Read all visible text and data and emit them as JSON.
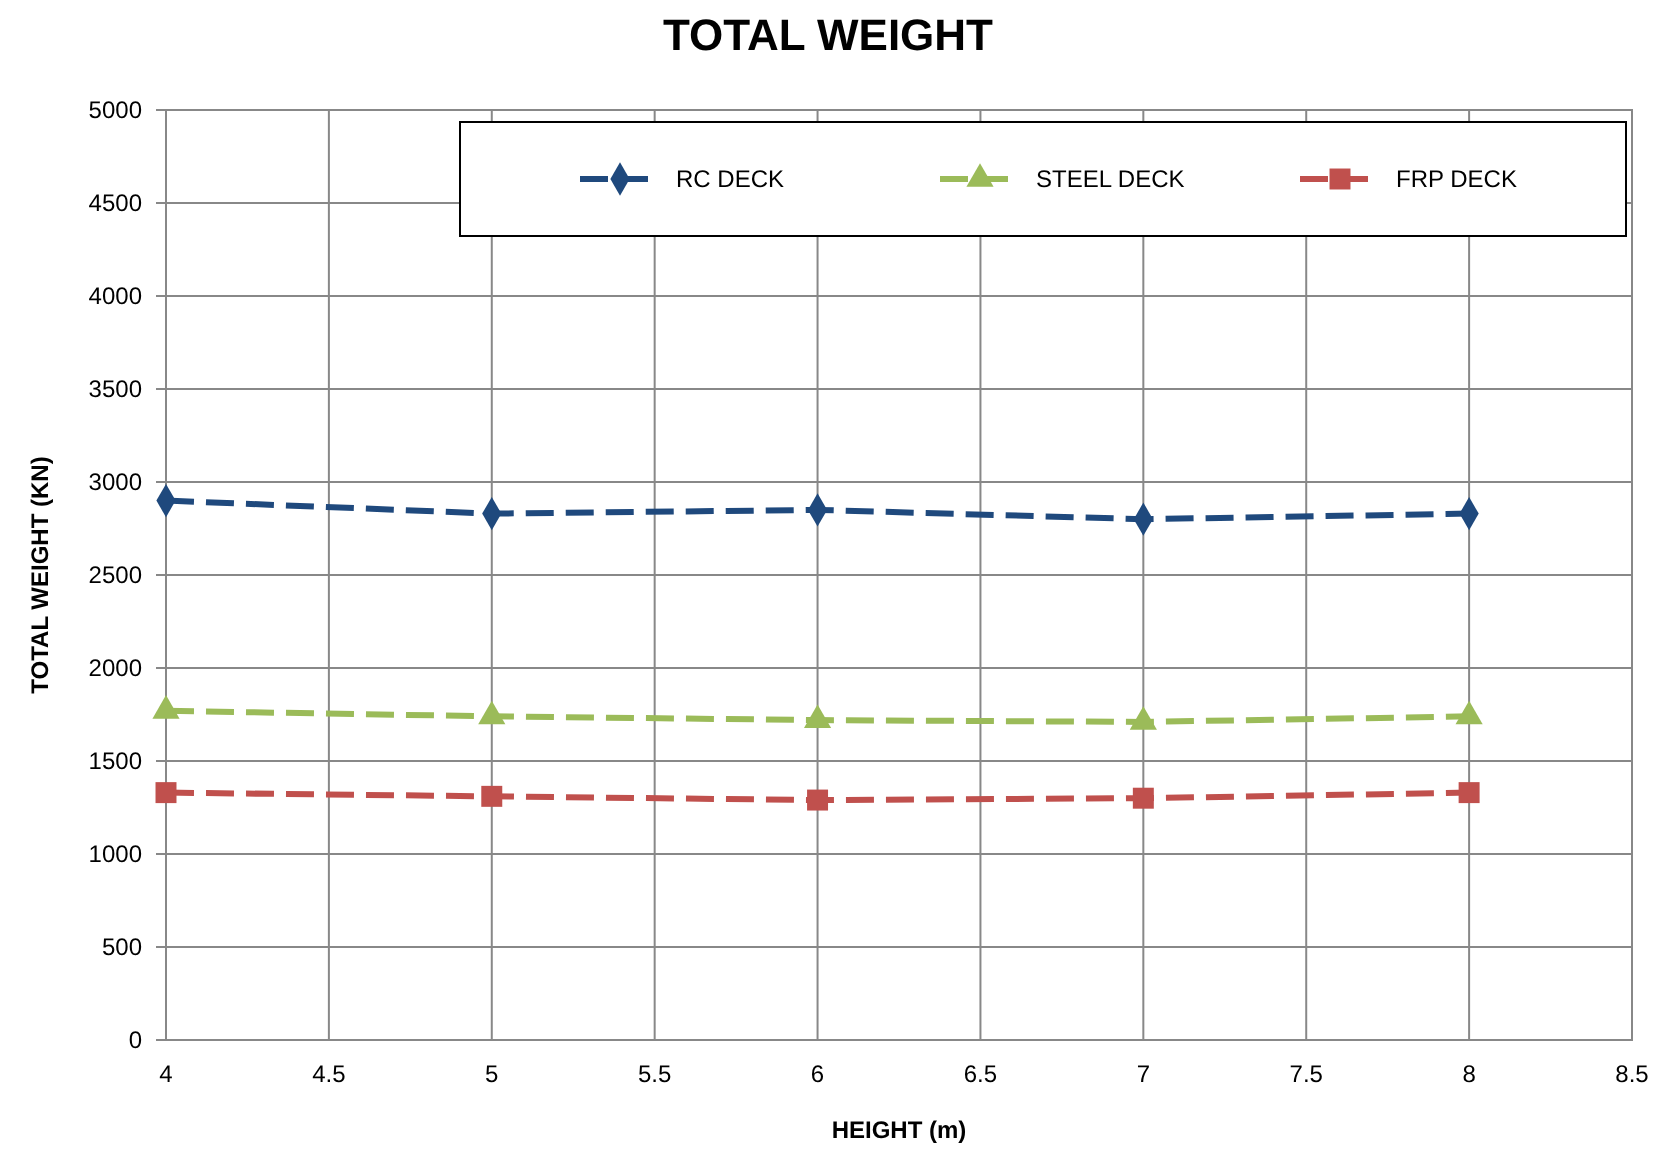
{
  "chart_data": {
    "type": "line",
    "title": "TOTAL WEIGHT",
    "xlabel": "HEIGHT (m)",
    "ylabel": "TOTAL WEIGHT (KN)",
    "x": [
      4,
      5,
      6,
      7,
      8
    ],
    "series": [
      {
        "name": "RC DECK",
        "color": "#1f497d",
        "marker": "diamond",
        "values": [
          2900,
          2830,
          2850,
          2800,
          2830
        ]
      },
      {
        "name": "STEEL DECK",
        "color": "#9bbb59",
        "marker": "triangle",
        "values": [
          1770,
          1740,
          1720,
          1710,
          1740
        ]
      },
      {
        "name": "FRP DECK",
        "color": "#c0504d",
        "marker": "square",
        "values": [
          1330,
          1310,
          1290,
          1300,
          1330
        ]
      }
    ],
    "xlim": [
      4,
      8.5
    ],
    "xticks": [
      4,
      4.5,
      5,
      5.5,
      6,
      6.5,
      7,
      7.5,
      8,
      8.5
    ],
    "ylim": [
      0,
      5000
    ],
    "yticks": [
      0,
      500,
      1000,
      1500,
      2000,
      2500,
      3000,
      3500,
      4000,
      4500,
      5000
    ],
    "grid": true,
    "legend": "top right",
    "line_style": "dashed"
  }
}
